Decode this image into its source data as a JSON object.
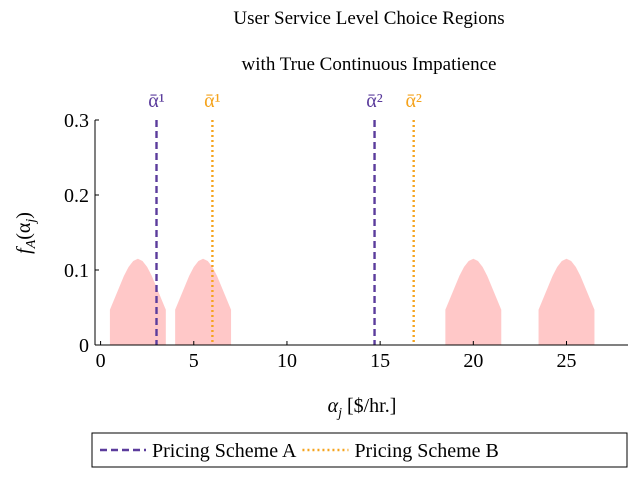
{
  "chart_data": {
    "type": "density-regions",
    "title": [
      "User Service Level Choice Regions",
      "with True Continuous Impatience"
    ],
    "xlabel": [
      "α",
      "j",
      " [$/hr.]"
    ],
    "ylabel": [
      "f",
      "A",
      "(α",
      "j",
      ")"
    ],
    "xlim": [
      -0.3,
      28.3
    ],
    "ylim": [
      0,
      0.3
    ],
    "xticks": [
      0,
      5,
      10,
      15,
      20,
      25
    ],
    "yticks": [
      0,
      0.1,
      0.2,
      0.3
    ],
    "area_color": "#ffc8c8",
    "areas": [
      {
        "x": [
          0.5,
          0.75,
          1,
          1.25,
          1.5,
          1.75,
          2,
          2.25,
          2.5,
          2.75,
          3,
          3.25,
          3.5
        ],
        "values": [
          0.047,
          0.062,
          0.077,
          0.092,
          0.104,
          0.112,
          0.115,
          0.112,
          0.104,
          0.092,
          0.077,
          0.062,
          0.047
        ]
      },
      {
        "x": [
          4,
          4.25,
          4.5,
          4.75,
          5,
          5.25,
          5.5,
          5.75,
          6,
          6.25,
          6.5,
          6.75,
          7
        ],
        "values": [
          0.047,
          0.062,
          0.077,
          0.092,
          0.104,
          0.112,
          0.115,
          0.112,
          0.104,
          0.092,
          0.077,
          0.062,
          0.047
        ]
      },
      {
        "x": [
          18.5,
          18.75,
          19,
          19.25,
          19.5,
          19.75,
          20,
          20.25,
          20.5,
          20.75,
          21,
          21.25,
          21.5
        ],
        "values": [
          0.047,
          0.062,
          0.077,
          0.092,
          0.104,
          0.112,
          0.115,
          0.112,
          0.104,
          0.092,
          0.077,
          0.062,
          0.047
        ]
      },
      {
        "x": [
          23.5,
          23.75,
          24,
          24.25,
          24.5,
          24.75,
          25,
          25.25,
          25.5,
          25.75,
          26,
          26.25,
          26.5
        ],
        "values": [
          0.047,
          0.062,
          0.077,
          0.092,
          0.104,
          0.112,
          0.115,
          0.112,
          0.104,
          0.092,
          0.077,
          0.062,
          0.047
        ]
      }
    ],
    "series": [
      {
        "name": "Pricing Scheme A",
        "color": "#5b3c9c",
        "dash": "dashed",
        "values": [
          3,
          14.7
        ],
        "labels": [
          "ᾱ¹",
          "ᾱ²"
        ]
      },
      {
        "name": "Pricing Scheme B",
        "color": "#f5a31c",
        "dash": "dotted",
        "values": [
          6,
          16.8
        ],
        "labels": [
          "ᾱ¹",
          "ᾱ²"
        ]
      }
    ],
    "legend": "bottom"
  }
}
